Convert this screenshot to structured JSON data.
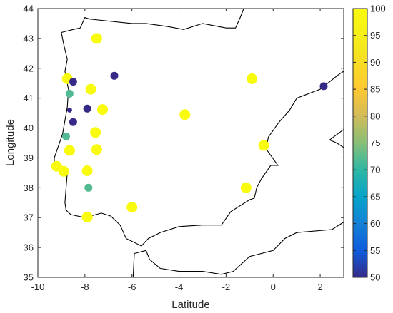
{
  "chart_data": {
    "type": "scatter",
    "xlabel": "Latitude",
    "ylabel": "Longitude",
    "xlim": [
      -10,
      3
    ],
    "ylim": [
      35,
      44
    ],
    "x_ticks": [
      "-10",
      "-8",
      "-6",
      "-4",
      "-2",
      "0",
      "2"
    ],
    "y_ticks": [
      "35",
      "36",
      "37",
      "38",
      "39",
      "40",
      "41",
      "42",
      "43",
      "44"
    ],
    "grid": false,
    "colorbar": {
      "min": 50,
      "max": 100,
      "ticks": [
        "100",
        "95",
        "90",
        "85",
        "80",
        "75",
        "70",
        "65",
        "60",
        "55",
        "50"
      ],
      "colormap": "parula",
      "placement": "right"
    },
    "marker_sizes": {
      "large": "large",
      "medium": "medium",
      "small": "small"
    },
    "points": [
      {
        "x": -7.5,
        "y": 43.0,
        "value": 100,
        "size": "large"
      },
      {
        "x": -8.75,
        "y": 41.65,
        "value": 100,
        "size": "large"
      },
      {
        "x": -8.5,
        "y": 41.55,
        "value": 50,
        "size": "medium"
      },
      {
        "x": -6.75,
        "y": 41.75,
        "value": 50,
        "size": "medium"
      },
      {
        "x": -8.65,
        "y": 41.15,
        "value": 72,
        "size": "medium"
      },
      {
        "x": -7.75,
        "y": 41.3,
        "value": 100,
        "size": "large"
      },
      {
        "x": -8.65,
        "y": 40.6,
        "value": 50,
        "size": "small"
      },
      {
        "x": -7.9,
        "y": 40.65,
        "value": 50,
        "size": "medium"
      },
      {
        "x": -7.25,
        "y": 40.62,
        "value": 100,
        "size": "large"
      },
      {
        "x": -8.5,
        "y": 40.2,
        "value": 50,
        "size": "medium"
      },
      {
        "x": -7.55,
        "y": 39.85,
        "value": 100,
        "size": "large"
      },
      {
        "x": -8.8,
        "y": 39.72,
        "value": 72,
        "size": "medium"
      },
      {
        "x": -8.65,
        "y": 39.25,
        "value": 100,
        "size": "large"
      },
      {
        "x": -7.5,
        "y": 39.28,
        "value": 100,
        "size": "large"
      },
      {
        "x": -9.2,
        "y": 38.72,
        "value": 100,
        "size": "large"
      },
      {
        "x": -8.9,
        "y": 38.55,
        "value": 100,
        "size": "large"
      },
      {
        "x": -7.9,
        "y": 38.57,
        "value": 100,
        "size": "large"
      },
      {
        "x": -7.85,
        "y": 38.0,
        "value": 72,
        "size": "medium"
      },
      {
        "x": -7.9,
        "y": 37.02,
        "value": 100,
        "size": "large"
      },
      {
        "x": -6.0,
        "y": 37.35,
        "value": 100,
        "size": "large"
      },
      {
        "x": -3.75,
        "y": 40.45,
        "value": 100,
        "size": "large"
      },
      {
        "x": -0.9,
        "y": 41.65,
        "value": 100,
        "size": "large"
      },
      {
        "x": 2.15,
        "y": 41.4,
        "value": 50,
        "size": "medium"
      },
      {
        "x": -0.4,
        "y": 39.42,
        "value": 100,
        "size": "large"
      },
      {
        "x": -1.15,
        "y": 38.0,
        "value": 100,
        "size": "large"
      }
    ],
    "coastlines": [
      [
        [
          -9.0,
          43.2
        ],
        [
          -8.5,
          43.3
        ],
        [
          -8.2,
          43.35
        ],
        [
          -8.0,
          43.7
        ],
        [
          -7.8,
          43.65
        ],
        [
          -6.0,
          43.5
        ],
        [
          -5.4,
          43.5
        ],
        [
          -4.5,
          43.4
        ],
        [
          -3.8,
          43.3
        ],
        [
          -3.0,
          43.5
        ],
        [
          -2.0,
          43.35
        ],
        [
          -1.6,
          43.35
        ],
        [
          -1.4,
          43.7
        ],
        [
          -1.25,
          44.0
        ]
      ],
      [
        [
          -9.0,
          43.2
        ],
        [
          -8.9,
          42.8
        ],
        [
          -8.75,
          42.3
        ],
        [
          -8.85,
          41.9
        ],
        [
          -8.7,
          41.3
        ],
        [
          -8.75,
          40.7
        ],
        [
          -8.95,
          39.8
        ],
        [
          -9.3,
          39.0
        ],
        [
          -9.3,
          38.75
        ],
        [
          -8.75,
          38.5
        ],
        [
          -8.8,
          38.0
        ],
        [
          -8.85,
          37.5
        ],
        [
          -8.8,
          37.25
        ],
        [
          -8.6,
          37.1
        ],
        [
          -8.0,
          37.0
        ],
        [
          -7.3,
          37.15
        ],
        [
          -6.9,
          37.05
        ],
        [
          -6.5,
          36.75
        ],
        [
          -6.25,
          36.3
        ],
        [
          -5.6,
          36.05
        ],
        [
          -5.3,
          36.3
        ],
        [
          -4.8,
          36.5
        ],
        [
          -4.0,
          36.7
        ],
        [
          -3.0,
          36.75
        ],
        [
          -2.2,
          36.75
        ],
        [
          -1.8,
          37.2
        ],
        [
          -1.0,
          37.6
        ],
        [
          -0.8,
          37.65
        ],
        [
          -0.7,
          38.0
        ],
        [
          -0.5,
          38.3
        ],
        [
          -0.1,
          38.75
        ],
        [
          0.2,
          38.75
        ],
        [
          -0.3,
          39.3
        ],
        [
          -0.2,
          39.7
        ],
        [
          0.25,
          40.2
        ],
        [
          0.7,
          40.6
        ],
        [
          1.0,
          41.0
        ],
        [
          2.0,
          41.3
        ],
        [
          2.8,
          41.8
        ],
        [
          3.0,
          41.9
        ]
      ],
      [
        [
          -5.95,
          35.0
        ],
        [
          -5.9,
          35.8
        ],
        [
          -5.4,
          35.9
        ],
        [
          -5.25,
          35.6
        ],
        [
          -4.8,
          35.3
        ],
        [
          -4.0,
          35.2
        ],
        [
          -3.0,
          35.2
        ],
        [
          -2.2,
          35.1
        ],
        [
          -1.7,
          35.2
        ],
        [
          -1.0,
          35.7
        ],
        [
          0.0,
          35.9
        ],
        [
          0.5,
          36.3
        ],
        [
          1.0,
          36.5
        ],
        [
          2.5,
          36.6
        ],
        [
          3.0,
          36.85
        ]
      ],
      [
        [
          2.4,
          39.6
        ],
        [
          3.0,
          39.95
        ]
      ],
      [
        [
          2.4,
          39.6
        ],
        [
          2.7,
          39.5
        ],
        [
          3.0,
          39.35
        ]
      ]
    ]
  }
}
